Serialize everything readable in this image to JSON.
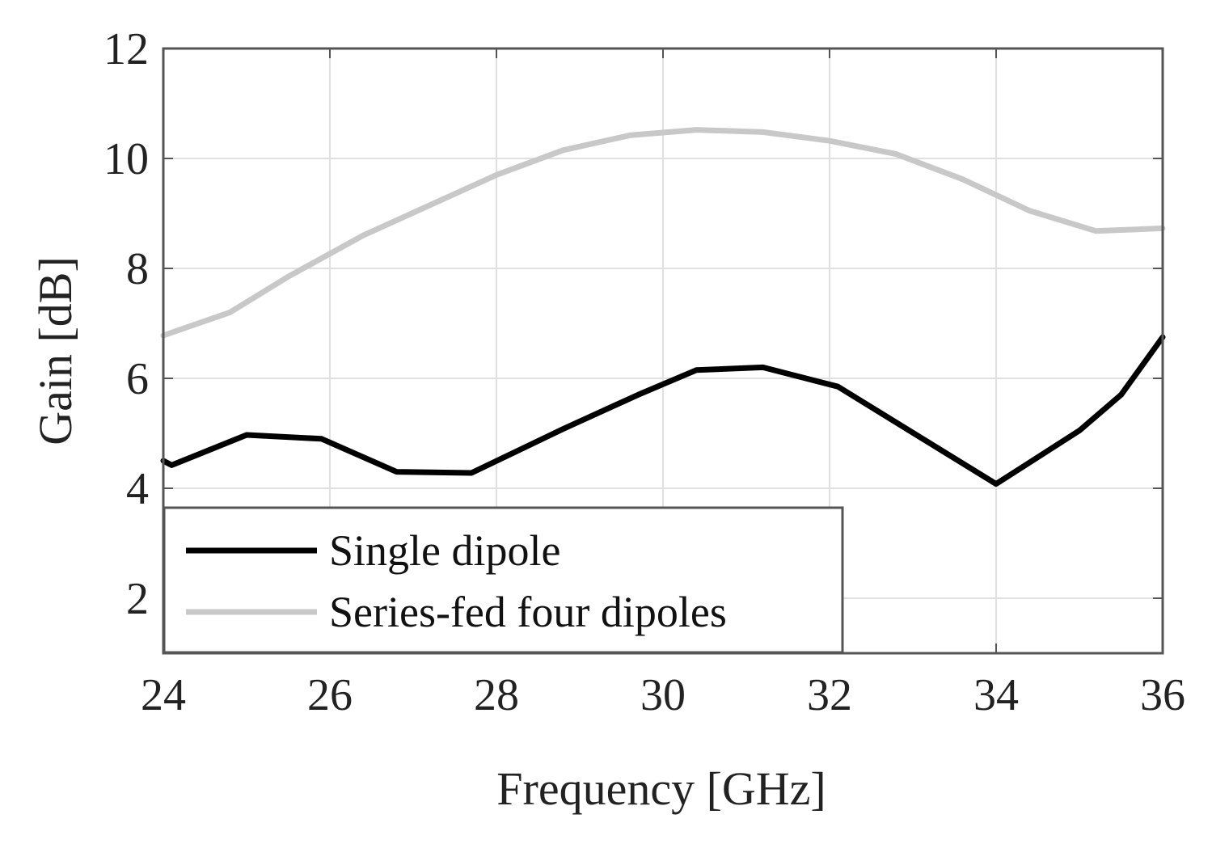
{
  "chart_data": {
    "type": "line",
    "xlabel": "Frequency [GHz]",
    "ylabel": "Gain [dB]",
    "xlim": [
      24,
      36
    ],
    "ylim": [
      1,
      12
    ],
    "xticks": [
      24,
      26,
      28,
      30,
      32,
      34,
      36
    ],
    "yticks": [
      2,
      4,
      6,
      8,
      10,
      12
    ],
    "grid": true,
    "legend_position": "bottom-left",
    "series": [
      {
        "name": "Single dipole",
        "color": "#000000",
        "x": [
          24,
          24.1,
          25,
          25.9,
          26.8,
          27.7,
          28.8,
          29.7,
          30.4,
          31.2,
          32.1,
          34,
          35,
          35.5,
          36
        ],
        "y": [
          4.5,
          4.42,
          4.97,
          4.9,
          4.3,
          4.28,
          5.08,
          5.7,
          6.15,
          6.2,
          5.85,
          4.08,
          5.05,
          5.7,
          6.75
        ]
      },
      {
        "name": "Series-fed four dipoles",
        "color": "#c8c8c8",
        "x": [
          24,
          24.8,
          25.5,
          26.4,
          27.2,
          28,
          28.8,
          29.6,
          30.4,
          31.2,
          32,
          32.8,
          33.6,
          34.4,
          35.2,
          36
        ],
        "y": [
          6.78,
          7.2,
          7.85,
          8.6,
          9.15,
          9.7,
          10.15,
          10.42,
          10.52,
          10.48,
          10.32,
          10.08,
          9.62,
          9.05,
          8.68,
          8.73
        ]
      }
    ]
  }
}
